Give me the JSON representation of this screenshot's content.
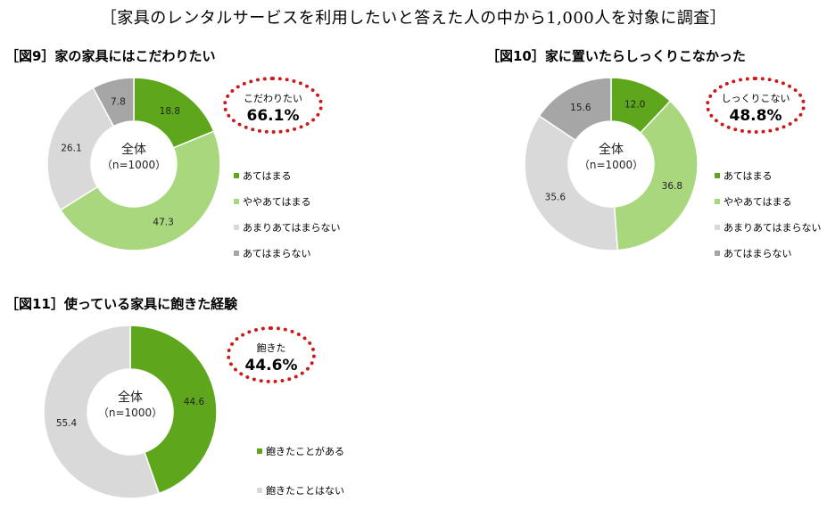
{
  "header": "［家具のレンタルサービスを利用したいと答えた人の中から1,000人を対象に調査］",
  "chart_data": [
    {
      "type": "pie",
      "title": "［図9］家の家具にはこだわりたい",
      "center_label": "全体",
      "center_sub": "（n=1000）",
      "categories": [
        "あてはまる",
        "ややあてはまる",
        "あまりあてはまらない",
        "あてはまらない"
      ],
      "values": [
        18.8,
        47.3,
        26.1,
        7.8
      ],
      "value_labels": [
        "18.8",
        "47.3",
        "26.1",
        "7.8"
      ],
      "colors": [
        "#5ea61c",
        "#a9d77e",
        "#d9d9d9",
        "#a6a6a6"
      ],
      "callout_label": "こだわりたい",
      "callout_value": "66.1%"
    },
    {
      "type": "pie",
      "title": "［図10］家に置いたらしっくりこなかった",
      "center_label": "全体",
      "center_sub": "（n=1000）",
      "categories": [
        "あてはまる",
        "ややあてはまる",
        "あまりあてはまらない",
        "あてはまらない"
      ],
      "values": [
        12.0,
        36.8,
        35.6,
        15.6
      ],
      "value_labels": [
        "12.0",
        "36.8",
        "35.6",
        "15.6"
      ],
      "colors": [
        "#5ea61c",
        "#a9d77e",
        "#d9d9d9",
        "#a6a6a6"
      ],
      "callout_label": "しっくりこない",
      "callout_value": "48.8%"
    },
    {
      "type": "pie",
      "title": "［図11］使っている家具に飽きた経験",
      "center_label": "全体",
      "center_sub": "（n=1000）",
      "categories": [
        "飽きたことがある",
        "飽きたことはない"
      ],
      "values": [
        44.6,
        55.4
      ],
      "value_labels": [
        "44.6",
        "55.4"
      ],
      "colors": [
        "#5ea61c",
        "#d9d9d9"
      ],
      "callout_label": "飽きた",
      "callout_value": "44.6%"
    }
  ]
}
